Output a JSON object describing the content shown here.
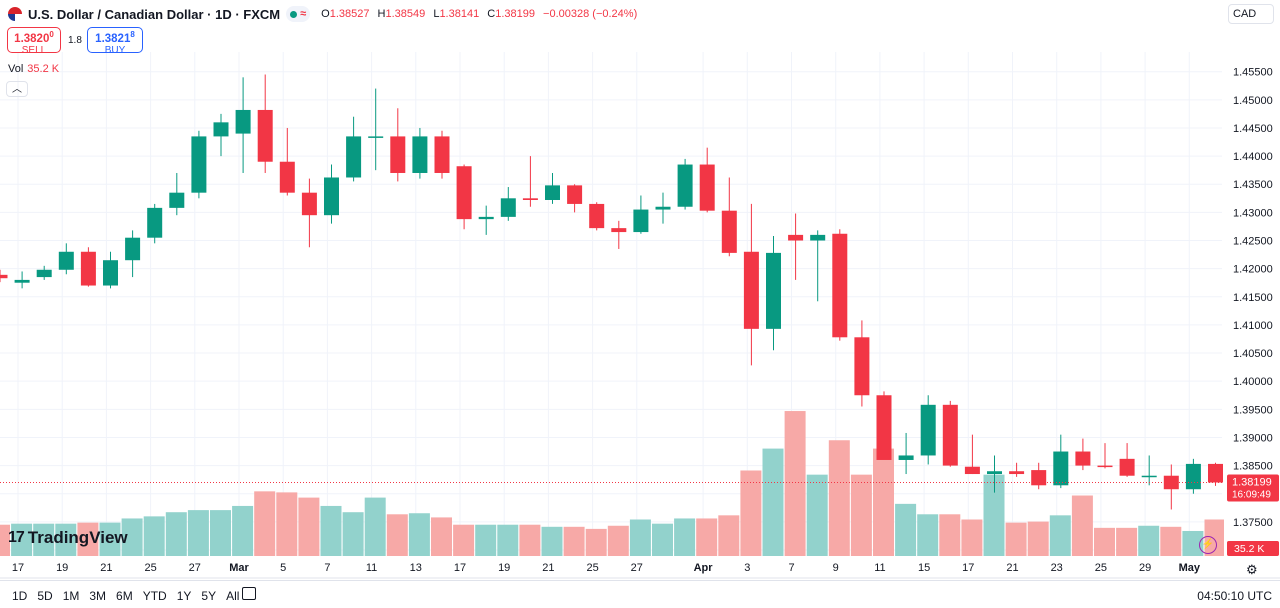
{
  "header": {
    "title": "U.S. Dollar / Canadian Dollar · 1D · FXCM",
    "ohlc": {
      "o_label": "O",
      "o": "1.38527",
      "h_label": "H",
      "h": "1.38549",
      "l_label": "L",
      "l": "1.38141",
      "c_label": "C",
      "c": "1.38199",
      "change": "−0.00328 (−0.24%)"
    }
  },
  "trade": {
    "sell_price": "1.3820",
    "sell_sup": "0",
    "sell_label": "SELL",
    "spread": "1.8",
    "buy_price": "1.3821",
    "buy_sup": "8",
    "buy_label": "BUY"
  },
  "volume_legend": {
    "label": "Vol",
    "value": "35.2 K"
  },
  "currency": "CAD",
  "logo": "TradingView",
  "bottom": {
    "ranges": [
      "1D",
      "5D",
      "1M",
      "3M",
      "6M",
      "YTD",
      "1Y",
      "5Y",
      "All"
    ],
    "time": "04:50:10 UTC"
  },
  "colors": {
    "up": "#089981",
    "down": "#f23645",
    "up_vol": "#92d2cc",
    "down_vol": "#f7a9a7"
  },
  "icons": [
    "flag-icon",
    "calendar-icon",
    "gear-icon",
    "bolt-icon",
    "chevron-up-icon"
  ],
  "chart_data": {
    "type": "candlestick",
    "y_axis": {
      "ticks": [
        "1.45500",
        "1.45000",
        "1.44500",
        "1.44000",
        "1.43500",
        "1.43000",
        "1.42500",
        "1.42000",
        "1.41500",
        "1.41000",
        "1.40500",
        "1.40000",
        "1.39500",
        "1.39000",
        "1.38500",
        "1.38000",
        "1.37500",
        "1.37000"
      ],
      "range": [
        1.37,
        1.4585
      ]
    },
    "x_axis": {
      "ticks": [
        "17",
        "19",
        "21",
        "25",
        "27",
        "Mar",
        "5",
        "7",
        "11",
        "13",
        "17",
        "19",
        "21",
        "25",
        "27",
        "Apr",
        "3",
        "7",
        "9",
        "11",
        "15",
        "17",
        "21",
        "23",
        "25",
        "29",
        "May"
      ]
    },
    "last_price": {
      "price": "1.38199",
      "countdown": "16:09:49"
    },
    "last_volume": "35.2 K",
    "candles": [
      {
        "o": 1.4189,
        "h": 1.4198,
        "l": 1.4176,
        "c": 1.4183,
        "v": 30
      },
      {
        "o": 1.4175,
        "h": 1.4195,
        "l": 1.4165,
        "c": 1.418,
        "v": 31
      },
      {
        "o": 1.4185,
        "h": 1.4205,
        "l": 1.418,
        "c": 1.4198,
        "v": 31
      },
      {
        "o": 1.4198,
        "h": 1.4245,
        "l": 1.419,
        "c": 1.423,
        "v": 31
      },
      {
        "o": 1.423,
        "h": 1.4238,
        "l": 1.4168,
        "c": 1.417,
        "v": 32
      },
      {
        "o": 1.417,
        "h": 1.423,
        "l": 1.4165,
        "c": 1.4215,
        "v": 32
      },
      {
        "o": 1.4215,
        "h": 1.4268,
        "l": 1.4185,
        "c": 1.4255,
        "v": 36
      },
      {
        "o": 1.4255,
        "h": 1.4315,
        "l": 1.4245,
        "c": 1.4308,
        "v": 38
      },
      {
        "o": 1.4308,
        "h": 1.437,
        "l": 1.4295,
        "c": 1.4335,
        "v": 42
      },
      {
        "o": 1.4335,
        "h": 1.4445,
        "l": 1.4325,
        "c": 1.4435,
        "v": 44
      },
      {
        "o": 1.4435,
        "h": 1.4475,
        "l": 1.44,
        "c": 1.446,
        "v": 44
      },
      {
        "o": 1.444,
        "h": 1.454,
        "l": 1.437,
        "c": 1.4482,
        "v": 48
      },
      {
        "o": 1.4482,
        "h": 1.4545,
        "l": 1.437,
        "c": 1.439,
        "v": 62
      },
      {
        "o": 1.439,
        "h": 1.445,
        "l": 1.433,
        "c": 1.4335,
        "v": 61
      },
      {
        "o": 1.4335,
        "h": 1.436,
        "l": 1.4238,
        "c": 1.4295,
        "v": 56
      },
      {
        "o": 1.4295,
        "h": 1.4385,
        "l": 1.428,
        "c": 1.4362,
        "v": 48
      },
      {
        "o": 1.4362,
        "h": 1.447,
        "l": 1.4355,
        "c": 1.4435,
        "v": 42
      },
      {
        "o": 1.4435,
        "h": 1.452,
        "l": 1.4375,
        "c": 1.4435,
        "v": 56
      },
      {
        "o": 1.4435,
        "h": 1.4485,
        "l": 1.4355,
        "c": 1.437,
        "v": 40
      },
      {
        "o": 1.437,
        "h": 1.445,
        "l": 1.436,
        "c": 1.4435,
        "v": 41
      },
      {
        "o": 1.4435,
        "h": 1.4445,
        "l": 1.436,
        "c": 1.437,
        "v": 37
      },
      {
        "o": 1.4382,
        "h": 1.4385,
        "l": 1.427,
        "c": 1.4288,
        "v": 30
      },
      {
        "o": 1.4288,
        "h": 1.4312,
        "l": 1.426,
        "c": 1.4292,
        "v": 30
      },
      {
        "o": 1.4292,
        "h": 1.4345,
        "l": 1.4285,
        "c": 1.4325,
        "v": 30
      },
      {
        "o": 1.4325,
        "h": 1.44,
        "l": 1.431,
        "c": 1.4322,
        "v": 30
      },
      {
        "o": 1.4322,
        "h": 1.437,
        "l": 1.4315,
        "c": 1.4348,
        "v": 28
      },
      {
        "o": 1.4348,
        "h": 1.435,
        "l": 1.43,
        "c": 1.4315,
        "v": 28
      },
      {
        "o": 1.4315,
        "h": 1.4318,
        "l": 1.4268,
        "c": 1.4272,
        "v": 26
      },
      {
        "o": 1.4272,
        "h": 1.4285,
        "l": 1.4235,
        "c": 1.4265,
        "v": 29
      },
      {
        "o": 1.4265,
        "h": 1.433,
        "l": 1.4262,
        "c": 1.4305,
        "v": 35
      },
      {
        "o": 1.4305,
        "h": 1.4335,
        "l": 1.428,
        "c": 1.431,
        "v": 31
      },
      {
        "o": 1.431,
        "h": 1.4395,
        "l": 1.4305,
        "c": 1.4385,
        "v": 36
      },
      {
        "o": 1.4385,
        "h": 1.4415,
        "l": 1.43,
        "c": 1.4303,
        "v": 36
      },
      {
        "o": 1.4303,
        "h": 1.4362,
        "l": 1.4222,
        "c": 1.4228,
        "v": 39
      },
      {
        "o": 1.423,
        "h": 1.4315,
        "l": 1.4028,
        "c": 1.4093,
        "v": 82
      },
      {
        "o": 1.4093,
        "h": 1.4258,
        "l": 1.4055,
        "c": 1.4228,
        "v": 103
      },
      {
        "o": 1.426,
        "h": 1.4298,
        "l": 1.418,
        "c": 1.425,
        "v": 139
      },
      {
        "o": 1.425,
        "h": 1.4268,
        "l": 1.4142,
        "c": 1.426,
        "v": 78
      },
      {
        "o": 1.4262,
        "h": 1.427,
        "l": 1.4072,
        "c": 1.4078,
        "v": 111
      },
      {
        "o": 1.4078,
        "h": 1.4108,
        "l": 1.3955,
        "c": 1.3975,
        "v": 78
      },
      {
        "o": 1.3975,
        "h": 1.3982,
        "l": 1.3862,
        "c": 1.386,
        "v": 103
      },
      {
        "o": 1.386,
        "h": 1.3908,
        "l": 1.3835,
        "c": 1.3868,
        "v": 50
      },
      {
        "o": 1.3868,
        "h": 1.3975,
        "l": 1.3852,
        "c": 1.3958,
        "v": 40
      },
      {
        "o": 1.3958,
        "h": 1.3965,
        "l": 1.3848,
        "c": 1.385,
        "v": 40
      },
      {
        "o": 1.3848,
        "h": 1.3905,
        "l": 1.3835,
        "c": 1.3835,
        "v": 35
      },
      {
        "o": 1.3835,
        "h": 1.3868,
        "l": 1.3802,
        "c": 1.384,
        "v": 78
      },
      {
        "o": 1.384,
        "h": 1.3855,
        "l": 1.383,
        "c": 1.3835,
        "v": 32
      },
      {
        "o": 1.3842,
        "h": 1.3855,
        "l": 1.3808,
        "c": 1.3815,
        "v": 33
      },
      {
        "o": 1.3815,
        "h": 1.3905,
        "l": 1.381,
        "c": 1.3875,
        "v": 39
      },
      {
        "o": 1.3875,
        "h": 1.3898,
        "l": 1.3842,
        "c": 1.385,
        "v": 58
      },
      {
        "o": 1.385,
        "h": 1.389,
        "l": 1.3845,
        "c": 1.3848,
        "v": 27
      },
      {
        "o": 1.3862,
        "h": 1.389,
        "l": 1.383,
        "c": 1.3832,
        "v": 27
      },
      {
        "o": 1.3832,
        "h": 1.3868,
        "l": 1.3815,
        "c": 1.3832,
        "v": 29
      },
      {
        "o": 1.3832,
        "h": 1.3852,
        "l": 1.3772,
        "c": 1.3808,
        "v": 28
      },
      {
        "o": 1.3808,
        "h": 1.3862,
        "l": 1.38,
        "c": 1.3853,
        "v": 24
      },
      {
        "o": 1.3853,
        "h": 1.3855,
        "l": 1.3814,
        "c": 1.382,
        "v": 35
      }
    ]
  }
}
